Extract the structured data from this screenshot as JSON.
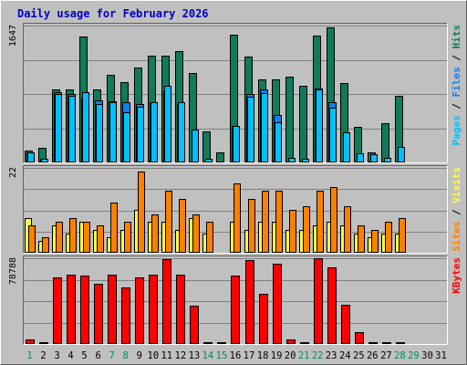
{
  "chart_data": {
    "type": "bar",
    "title": "Daily usage for February 2026",
    "colors": {
      "background": "#c0c0c0",
      "plot_area": "#c0c0c0",
      "border_light": "#ffffff",
      "border_dark": "#606060",
      "title": "#0000c0",
      "hits": "#107a5a",
      "files": "#1080f0",
      "pages": "#00c0ff",
      "visits": "#ffff40",
      "sites": "#ff8000",
      "kbytes": "#ff0000",
      "weekend_day": "#009050",
      "weekday": "#000000",
      "gridline": "#808080"
    },
    "x": [
      "1",
      "2",
      "3",
      "4",
      "5",
      "6",
      "7",
      "8",
      "9",
      "10",
      "11",
      "12",
      "13",
      "14",
      "15",
      "16",
      "17",
      "18",
      "19",
      "20",
      "21",
      "22",
      "23",
      "24",
      "25",
      "26",
      "27",
      "28",
      "29",
      "30",
      "31"
    ],
    "weekend_days": [
      "1",
      "7",
      "8",
      "14",
      "15",
      "21",
      "22",
      "28",
      "29"
    ],
    "panels": [
      {
        "id": "top",
        "y_max_label": "1647",
        "ylim": [
          0,
          1647
        ],
        "right_label": [
          "Pages",
          "Files",
          "Hits"
        ],
        "right_label_colors": [
          "#00c0ff",
          "#1080f0",
          "#107a5a"
        ],
        "series": [
          {
            "name": "Hits",
            "color": "#107a5a",
            "values": [
              140,
              180,
              880,
              880,
              1520,
              880,
              1050,
              970,
              1140,
              1290,
              1280,
              1340,
              1080,
              370,
              120,
              1540,
              1270,
              1000,
              1000,
              1030,
              920,
              1530,
              1620,
              950,
              430,
              120,
              470,
              800,
              0,
              0,
              0
            ]
          },
          {
            "name": "Files",
            "color": "#1080f0",
            "values": [
              120,
              40,
              840,
              820,
              770,
              750,
              740,
              730,
              700,
              720,
              860,
              700,
              0,
              0,
              0,
              440,
              820,
              880,
              570,
              0,
              0,
              890,
              720,
              0,
              0,
              0,
              0,
              0,
              0,
              0,
              0
            ]
          },
          {
            "name": "Pages",
            "color": "#00c0ff",
            "values": [
              120,
              40,
              820,
              800,
              840,
              700,
              720,
              600,
              670,
              730,
              920,
              720,
              400,
              40,
              0,
              440,
              790,
              830,
              480,
              60,
              40,
              880,
              660,
              360,
              110,
              100,
              50,
              190,
              0,
              0,
              0
            ]
          }
        ]
      },
      {
        "id": "middle",
        "y_max_label": "22",
        "ylim": [
          0,
          22
        ],
        "right_label": [
          "Sites",
          "Visits"
        ],
        "right_label_colors": [
          "#ff8000",
          "#ffff40"
        ],
        "series": [
          {
            "name": "Visits",
            "color": "#ffff40",
            "values": [
              9,
              3,
              7,
              5,
              8,
              6,
              4,
              6,
              11,
              8,
              8,
              6,
              9,
              5,
              0,
              8,
              6,
              8,
              8,
              6,
              6,
              7,
              8,
              7,
              5,
              4,
              5,
              5,
              0,
              0,
              0
            ]
          },
          {
            "name": "Sites",
            "color": "#ff8000",
            "values": [
              7,
              4,
              8,
              9,
              8,
              7,
              13,
              8,
              21,
              10,
              16,
              14,
              10,
              8,
              0,
              18,
              14,
              16,
              16,
              11,
              12,
              16,
              17,
              12,
              7,
              6,
              8,
              9,
              0,
              0,
              0
            ]
          }
        ]
      },
      {
        "id": "bottom",
        "y_max_label": "78788",
        "ylim": [
          0,
          78788
        ],
        "right_label": [
          "KBytes"
        ],
        "right_label_colors": [
          "#ff0000"
        ],
        "series": [
          {
            "name": "KBytes",
            "color": "#ff0000",
            "values": [
              4000,
              1000,
              61000,
              64000,
              63000,
              55000,
              64000,
              52000,
              61000,
              64000,
              78000,
              64000,
              35000,
              1000,
              1000,
              63000,
              77000,
              46000,
              74000,
              4000,
              1000,
              79000,
              70000,
              36000,
              11000,
              1000,
              1000,
              1000,
              0,
              0,
              0
            ]
          }
        ]
      }
    ]
  }
}
